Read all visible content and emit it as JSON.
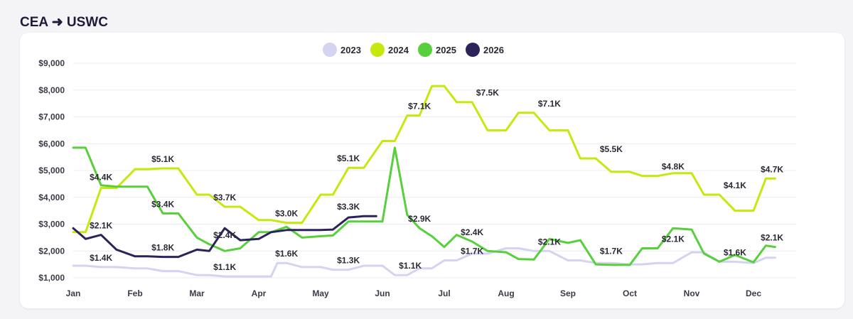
{
  "header": {
    "title": "CEA ➜ USWC"
  },
  "chart_data": {
    "type": "line",
    "title": "CEA ➜ USWC",
    "xlabel": "",
    "ylabel": "",
    "ylim": [
      1000,
      9000
    ],
    "yticks": [
      "$1,000",
      "$2,000",
      "$3,000",
      "$4,000",
      "$5,000",
      "$6,000",
      "$7,000",
      "$8,000",
      "$9,000"
    ],
    "ytick_values": [
      1000,
      2000,
      3000,
      4000,
      5000,
      6000,
      7000,
      8000,
      9000
    ],
    "categories": [
      "Jan",
      "Feb",
      "Mar",
      "Apr",
      "May",
      "Jun",
      "Jul",
      "Aug",
      "Sep",
      "Oct",
      "Nov",
      "Dec"
    ],
    "grid": true,
    "legend_position": "top-center",
    "series": [
      {
        "name": "2023",
        "color": "#d4d3f2",
        "x": [
          0,
          0.2,
          0.45,
          0.7,
          1,
          1.2,
          1.45,
          1.7,
          2,
          2.2,
          2.45,
          2.7,
          3,
          3.2,
          3.3,
          3.45,
          3.7,
          4,
          4.2,
          4.45,
          4.7,
          5,
          5.2,
          5.4,
          5.6,
          5.8,
          6,
          6.2,
          6.45,
          6.7,
          7,
          7.2,
          7.45,
          7.7,
          8,
          8.2,
          8.45,
          8.7,
          9,
          9.2,
          9.45,
          9.7,
          10,
          10.2,
          10.45,
          10.7,
          11,
          11.2,
          11.35
        ],
        "y": [
          1450,
          1450,
          1400,
          1400,
          1350,
          1350,
          1250,
          1250,
          1100,
          1100,
          1050,
          1050,
          1050,
          1050,
          1550,
          1550,
          1400,
          1400,
          1300,
          1300,
          1450,
          1450,
          1100,
          1100,
          1350,
          1350,
          1650,
          1650,
          1900,
          1900,
          2100,
          2100,
          2000,
          2000,
          1650,
          1650,
          1550,
          1550,
          1500,
          1500,
          1550,
          1550,
          1950,
          1950,
          1600,
          1600,
          1550,
          1750,
          1750
        ]
      },
      {
        "name": "2024",
        "color": "#c6e80d",
        "x": [
          0,
          0.2,
          0.45,
          0.7,
          1,
          1.2,
          1.45,
          1.7,
          2,
          2.2,
          2.45,
          2.7,
          3,
          3.2,
          3.45,
          3.7,
          4,
          4.2,
          4.45,
          4.7,
          5,
          5.2,
          5.4,
          5.6,
          5.8,
          6,
          6.2,
          6.45,
          6.7,
          7,
          7.2,
          7.45,
          7.7,
          8,
          8.2,
          8.45,
          8.7,
          9,
          9.2,
          9.45,
          9.7,
          10,
          10.2,
          10.45,
          10.7,
          11,
          11.2,
          11.35
        ],
        "y": [
          2700,
          2700,
          4350,
          4350,
          5050,
          5050,
          5080,
          5080,
          4100,
          4100,
          3650,
          3650,
          3150,
          3150,
          3050,
          3050,
          4100,
          4100,
          5100,
          5100,
          6100,
          6100,
          7050,
          7050,
          8150,
          8150,
          7550,
          7550,
          6500,
          6500,
          7150,
          7150,
          6500,
          6500,
          5450,
          5450,
          4950,
          4950,
          4800,
          4800,
          4900,
          4900,
          4100,
          4100,
          3500,
          3500,
          4700,
          4700
        ]
      },
      {
        "name": "2025",
        "color": "#57d03c",
        "x": [
          0,
          0.2,
          0.45,
          0.7,
          1,
          1.2,
          1.45,
          1.7,
          2,
          2.2,
          2.45,
          2.7,
          3,
          3.2,
          3.45,
          3.7,
          4,
          4.2,
          4.45,
          4.7,
          5,
          5.2,
          5.4,
          5.6,
          5.8,
          6,
          6.2,
          6.45,
          6.7,
          7,
          7.2,
          7.45,
          7.7,
          8,
          8.2,
          8.45,
          8.7,
          9,
          9.2,
          9.45,
          9.7,
          10,
          10.2,
          10.45,
          10.7,
          11,
          11.2,
          11.35
        ],
        "y": [
          5850,
          5850,
          4450,
          4400,
          4400,
          4400,
          3400,
          3400,
          2500,
          2250,
          2000,
          2100,
          2700,
          2700,
          2900,
          2500,
          2550,
          2580,
          3100,
          3100,
          3100,
          5850,
          3350,
          2850,
          2550,
          2150,
          2600,
          2350,
          2000,
          1950,
          1700,
          1680,
          2450,
          2300,
          2400,
          1500,
          1480,
          1480,
          2100,
          2100,
          2850,
          2800,
          1900,
          1600,
          1850,
          1580,
          2200,
          2150
        ]
      },
      {
        "name": "2026",
        "color": "#2b2359",
        "x": [
          0,
          0.2,
          0.45,
          0.7,
          1,
          1.2,
          1.45,
          1.7,
          2,
          2.2,
          2.45,
          2.7,
          3,
          3.2,
          3.45,
          3.7,
          4,
          4.2,
          4.45,
          4.7,
          4.9
        ],
        "y": [
          2850,
          2450,
          2600,
          2050,
          1800,
          1800,
          1780,
          1780,
          2050,
          2000,
          2850,
          2400,
          2450,
          2700,
          2780,
          2780,
          2780,
          2800,
          3250,
          3300,
          3300
        ]
      }
    ],
    "annotations": [
      {
        "x": 0.45,
        "y": 4400,
        "text": "$4.4K",
        "series": "2024"
      },
      {
        "x": 0.45,
        "y": 2600,
        "text": "$2.1K",
        "series": "2026"
      },
      {
        "x": 0.45,
        "y": 1400,
        "text": "$1.4K",
        "series": "2023"
      },
      {
        "x": 1.45,
        "y": 5080,
        "text": "$5.1K",
        "series": "2024"
      },
      {
        "x": 1.45,
        "y": 3400,
        "text": "$3.4K",
        "series": "2025"
      },
      {
        "x": 1.45,
        "y": 1780,
        "text": "$1.8K",
        "series": "2026"
      },
      {
        "x": 2.45,
        "y": 3650,
        "text": "$3.7K",
        "series": "2024"
      },
      {
        "x": 2.45,
        "y": 2250,
        "text": "$2.4K",
        "series": "2026"
      },
      {
        "x": 2.45,
        "y": 1050,
        "text": "$1.1K",
        "series": "2023"
      },
      {
        "x": 3.45,
        "y": 3050,
        "text": "$3.0K",
        "series": "2024"
      },
      {
        "x": 3.45,
        "y": 1550,
        "text": "$1.6K",
        "series": "2023"
      },
      {
        "x": 4.45,
        "y": 5100,
        "text": "$5.1K",
        "series": "2024"
      },
      {
        "x": 4.45,
        "y": 3300,
        "text": "$3.3K",
        "series": "2026"
      },
      {
        "x": 4.45,
        "y": 1300,
        "text": "$1.3K",
        "series": "2023"
      },
      {
        "x": 5.6,
        "y": 7050,
        "text": "$7.1K",
        "series": "2024"
      },
      {
        "x": 5.6,
        "y": 2850,
        "text": "$2.9K",
        "series": "2025"
      },
      {
        "x": 5.45,
        "y": 1100,
        "text": "$1.1K",
        "series": "2023"
      },
      {
        "x": 6.7,
        "y": 7550,
        "text": "$7.5K",
        "series": "2024"
      },
      {
        "x": 6.45,
        "y": 2350,
        "text": "$2.4K",
        "series": "2025"
      },
      {
        "x": 6.45,
        "y": 1650,
        "text": "$1.7K",
        "series": "2023"
      },
      {
        "x": 7.7,
        "y": 7150,
        "text": "$7.1K",
        "series": "2024"
      },
      {
        "x": 7.7,
        "y": 2000,
        "text": "$2.1K",
        "series": "2023"
      },
      {
        "x": 8.7,
        "y": 5450,
        "text": "$5.5K",
        "series": "2024"
      },
      {
        "x": 8.7,
        "y": 1650,
        "text": "$1.7K",
        "series": "2023"
      },
      {
        "x": 9.7,
        "y": 4800,
        "text": "$4.8K",
        "series": "2024"
      },
      {
        "x": 9.7,
        "y": 2100,
        "text": "$2.1K",
        "series": "2025"
      },
      {
        "x": 10.7,
        "y": 4100,
        "text": "$4.1K",
        "series": "2024"
      },
      {
        "x": 10.7,
        "y": 1600,
        "text": "$1.6K",
        "series": "2023"
      },
      {
        "x": 11.3,
        "y": 4700,
        "text": "$4.7K",
        "series": "2024"
      },
      {
        "x": 11.3,
        "y": 2150,
        "text": "$2.1K",
        "series": "2025"
      }
    ]
  }
}
